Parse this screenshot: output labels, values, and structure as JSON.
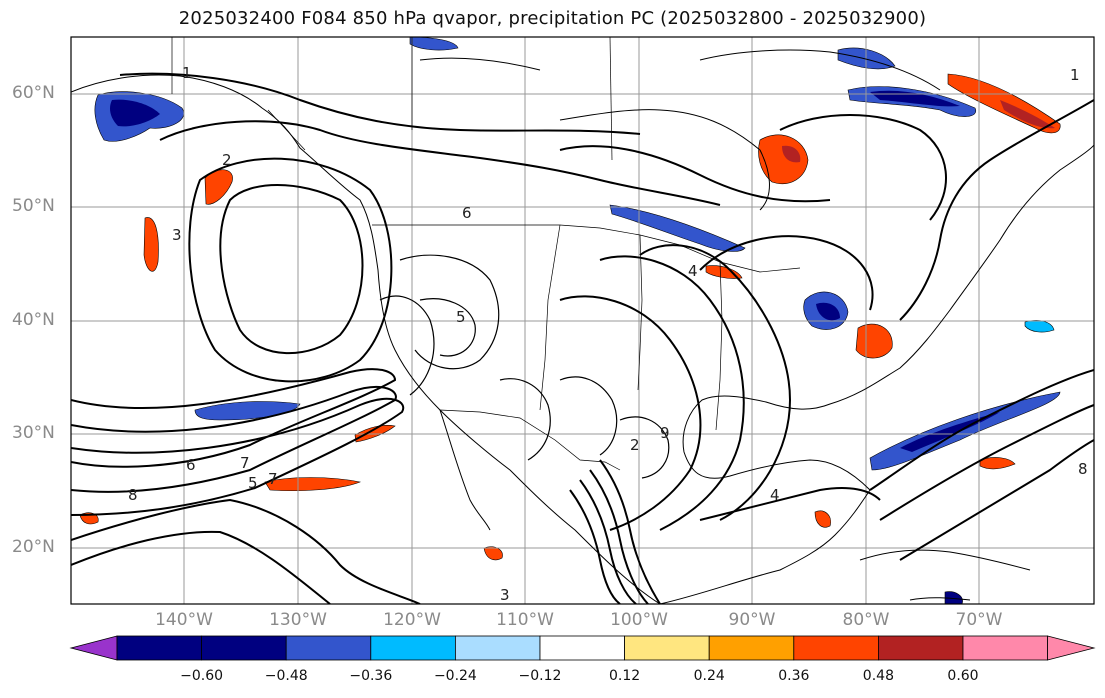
{
  "title": "2025032400 F084 850 hPa qvapor, precipitation PC (2025032800 - 2025032900)",
  "lat_labels": [
    "60°N",
    "50°N",
    "40°N",
    "30°N",
    "20°N"
  ],
  "lon_labels": [
    "140°W",
    "130°W",
    "120°W",
    "110°W",
    "100°W",
    "90°W",
    "80°W",
    "70°W"
  ],
  "colorbar": {
    "colors": [
      "#9933cc",
      "#000080",
      "#3355cc",
      "#00bbff",
      "#aaddff",
      "#ffffff",
      "#ffe680",
      "#ffa000",
      "#ff4400",
      "#b22222",
      "#ff88aa"
    ],
    "labels": [
      "−0.60",
      "−0.48",
      "−0.36",
      "−0.24",
      "−0.12",
      "0.12",
      "0.24",
      "0.36",
      "0.48",
      "0.60"
    ]
  },
  "contour_labels": [
    "1",
    "2",
    "3",
    "4",
    "5",
    "6",
    "7",
    "8",
    "9",
    "1",
    "2",
    "3",
    "4",
    "5",
    "6",
    "7",
    "8"
  ]
}
